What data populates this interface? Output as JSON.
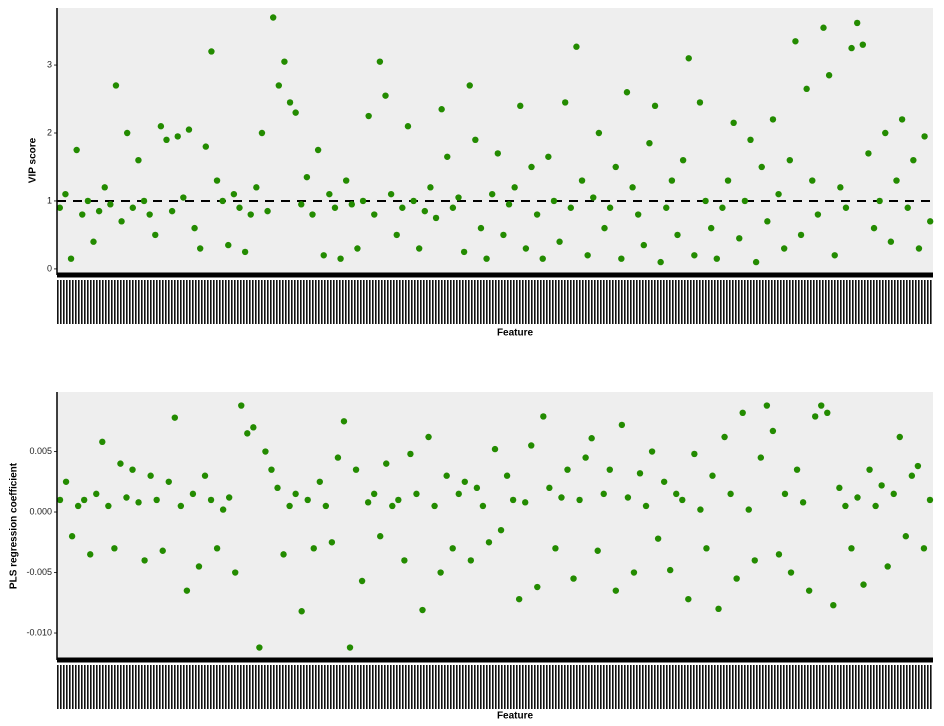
{
  "chart_data": [
    {
      "type": "scatter",
      "ylabel": "VIP score",
      "xlabel": "Feature",
      "color": "#238b00",
      "ylim": [
        -0.09,
        3.84
      ],
      "yticks": [
        0,
        1,
        2,
        3
      ],
      "hline": 1,
      "grid": false,
      "values": [
        0.9,
        1.1,
        0.15,
        1.75,
        0.8,
        1.0,
        0.4,
        0.85,
        1.2,
        0.95,
        2.7,
        0.7,
        2.0,
        0.9,
        1.6,
        1.0,
        0.8,
        0.5,
        2.1,
        1.9,
        0.85,
        1.95,
        1.05,
        2.05,
        0.6,
        0.3,
        1.8,
        3.2,
        1.3,
        1.0,
        0.35,
        1.1,
        0.9,
        0.25,
        0.8,
        1.2,
        2.0,
        0.85,
        3.7,
        2.7,
        3.05,
        2.45,
        2.3,
        0.95,
        1.35,
        0.8,
        1.75,
        0.2,
        1.1,
        0.9,
        0.15,
        1.3,
        0.95,
        0.3,
        1.0,
        2.25,
        0.8,
        3.05,
        2.55,
        1.1,
        0.5,
        0.9,
        2.1,
        1.0,
        0.3,
        0.85,
        1.2,
        0.75,
        2.35,
        1.65,
        0.9,
        1.05,
        0.25,
        2.7,
        1.9,
        0.6,
        0.15,
        1.1,
        1.7,
        0.5,
        0.95,
        1.2,
        2.4,
        0.3,
        1.5,
        0.8,
        0.15,
        1.65,
        1.0,
        0.4,
        2.45,
        0.9,
        3.27,
        1.3,
        0.2,
        1.05,
        2.0,
        0.6,
        0.9,
        1.5,
        0.15,
        2.6,
        1.2,
        0.8,
        0.35,
        1.85,
        2.4,
        0.1,
        0.9,
        1.3,
        0.5,
        1.6,
        3.1,
        0.2,
        2.45,
        1.0,
        0.6,
        0.15,
        0.9,
        1.3,
        2.15,
        0.45,
        1.0,
        1.9,
        0.1,
        1.5,
        0.7,
        2.2,
        1.1,
        0.3,
        1.6,
        3.35,
        0.5,
        2.65,
        1.3,
        0.8,
        3.55,
        2.85,
        0.2,
        1.2,
        0.9,
        3.25,
        3.62,
        3.3,
        1.7,
        0.6,
        1.0,
        2.0,
        0.4,
        1.3,
        2.2,
        0.9,
        1.6,
        0.3,
        1.95,
        0.7
      ]
    },
    {
      "type": "scatter",
      "ylabel": "PLS regression coefficient",
      "xlabel": "Feature",
      "color": "#238b00",
      "ylim": [
        -0.01223,
        0.00992
      ],
      "yticks": [
        {
          "value": -0.01,
          "label": "-0.010"
        },
        -0.005,
        {
          "value": 0,
          "label": "0.000"
        },
        0.005
      ],
      "grid": false,
      "values": [
        0.001,
        0.0025,
        -0.002,
        0.0005,
        0.001,
        -0.0035,
        0.0015,
        0.0058,
        0.0005,
        -0.003,
        0.004,
        0.0012,
        0.0035,
        0.0008,
        -0.004,
        0.003,
        0.001,
        -0.0032,
        0.0025,
        0.0078,
        0.0005,
        -0.0065,
        0.0015,
        -0.0045,
        0.003,
        0.001,
        -0.003,
        0.0002,
        0.0012,
        -0.005,
        0.0088,
        0.0065,
        0.007,
        -0.0112,
        0.005,
        0.0035,
        0.002,
        -0.0035,
        0.0005,
        0.0015,
        -0.0082,
        0.001,
        -0.003,
        0.0025,
        0.0005,
        -0.0025,
        0.0045,
        0.0075,
        -0.0112,
        0.0035,
        -0.0057,
        0.0008,
        0.0015,
        -0.002,
        0.004,
        0.0005,
        0.001,
        -0.004,
        0.0048,
        0.0015,
        -0.0081,
        0.0062,
        0.0005,
        -0.005,
        0.003,
        -0.003,
        0.0015,
        0.0025,
        -0.004,
        0.002,
        0.0005,
        -0.0025,
        0.0052,
        -0.0015,
        0.003,
        0.001,
        -0.0072,
        0.0008,
        0.0055,
        -0.0062,
        0.0079,
        0.002,
        -0.003,
        0.0012,
        0.0035,
        -0.0055,
        0.001,
        0.0045,
        0.0061,
        -0.0032,
        0.0015,
        0.0035,
        -0.0065,
        0.0072,
        0.0012,
        -0.005,
        0.0032,
        0.0005,
        0.005,
        -0.0022,
        0.0025,
        -0.0048,
        0.0015,
        0.001,
        -0.0072,
        0.0048,
        0.0002,
        -0.003,
        0.003,
        -0.008,
        0.0062,
        0.0015,
        -0.0055,
        0.0082,
        0.0002,
        -0.004,
        0.0045,
        0.0088,
        0.0067,
        -0.0035,
        0.0015,
        -0.005,
        0.0035,
        0.0008,
        -0.0065,
        0.0079,
        0.0088,
        0.0082,
        -0.0077,
        0.002,
        0.0005,
        -0.003,
        0.0012,
        -0.006,
        0.0035,
        0.0005,
        0.0022,
        -0.0045,
        0.0015,
        0.0062,
        -0.002,
        0.003,
        0.0038,
        -0.003,
        0.001
      ]
    }
  ]
}
